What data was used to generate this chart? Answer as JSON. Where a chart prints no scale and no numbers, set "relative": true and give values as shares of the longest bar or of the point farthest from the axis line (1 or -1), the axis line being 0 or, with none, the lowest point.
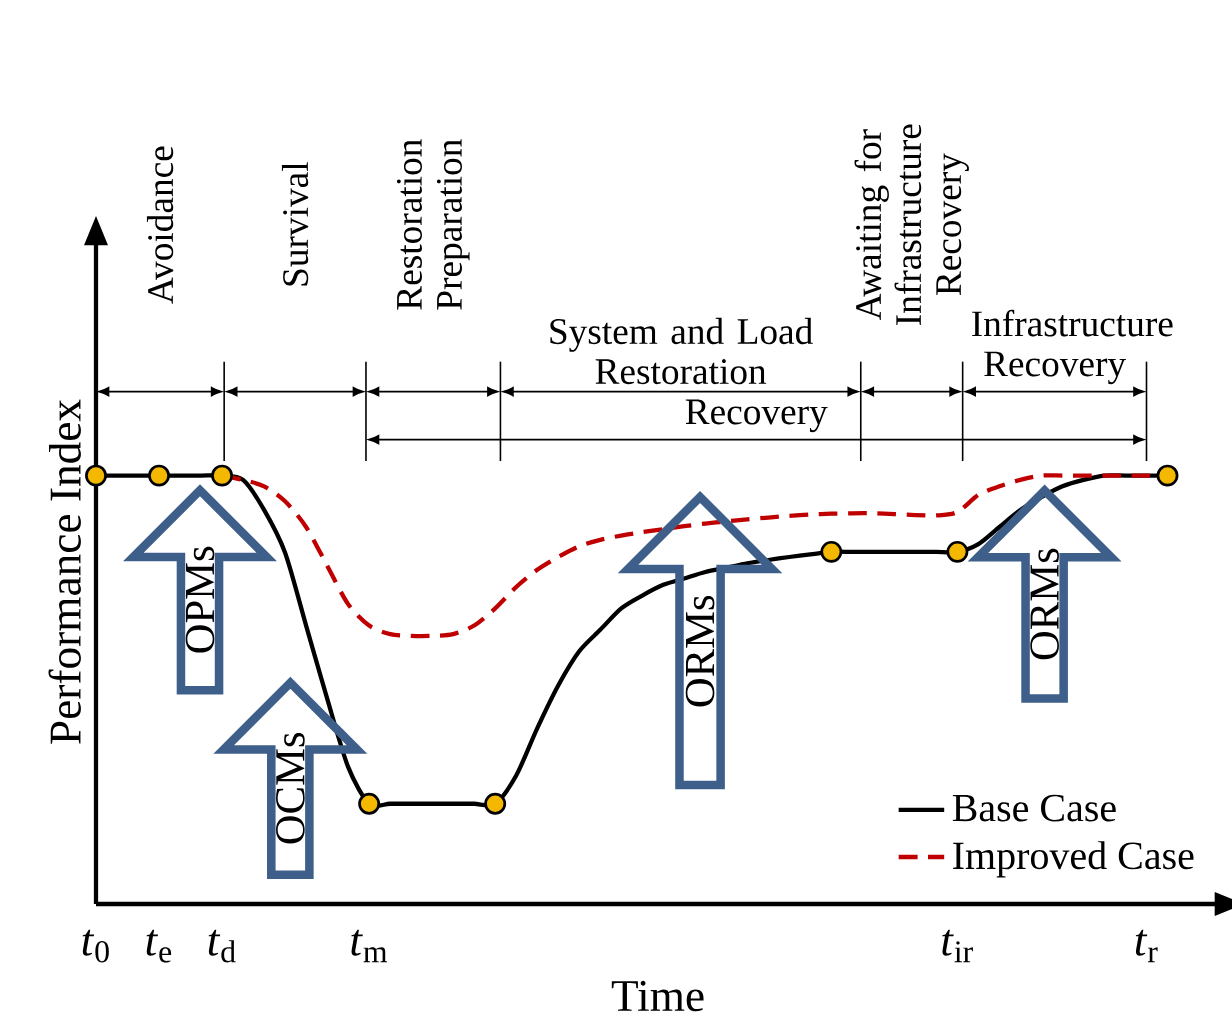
{
  "chart_data": {
    "type": "line",
    "relative": true,
    "xlabel": "Time",
    "ylabel": "Performance Index",
    "categories": [
      "*t*$_{0}$",
      null,
      null,
      "*t*$_{e}$",
      null,
      null,
      "*t*$_{d}$",
      null,
      null,
      null,
      null,
      null,
      null,
      "*t*$_{m}$",
      null,
      null,
      null,
      null,
      null,
      null,
      null,
      null,
      null,
      null,
      null,
      null,
      null,
      null,
      null,
      null,
      null,
      null,
      null,
      null,
      null,
      null,
      null,
      null,
      null,
      null,
      null,
      "*t*$_{ir}$",
      null,
      null,
      null,
      null,
      null,
      null,
      null,
      null,
      "*t*$_{r}$",
      null,
      null,
      null
    ],
    "legend": "bottom right",
    "series": [
      {
        "name": "Base Case",
        "color": "#000000",
        "line_style": "solid",
        "values": [
          1,
          1,
          1,
          1,
          1,
          1,
          1,
          0.99,
          0.92,
          0.82,
          0.65,
          0.48,
          0.32,
          0.234,
          0.234,
          0.234,
          0.234,
          0.234,
          0.234,
          0.234,
          0.3,
          0.41,
          0.51,
          0.59,
          0.64,
          0.69,
          0.72,
          0.745,
          0.76,
          0.775,
          0.785,
          0.795,
          0.803,
          0.81,
          0.816,
          0.822,
          0.822,
          0.822,
          0.822,
          0.822,
          0.822,
          0.822,
          0.84,
          0.88,
          0.92,
          0.95,
          0.975,
          0.99,
          1,
          1,
          1,
          1,
          null,
          null
        ]
      },
      {
        "name": "Improved Case",
        "color": "#c00000",
        "line_style": "dashed",
        "values": [
          null,
          null,
          null,
          null,
          null,
          null,
          1,
          0.99,
          0.975,
          0.94,
          0.88,
          0.79,
          0.7,
          0.65,
          0.63,
          0.626,
          0.626,
          0.63,
          0.65,
          0.69,
          0.74,
          0.78,
          0.81,
          0.835,
          0.85,
          0.86,
          0.868,
          0.875,
          0.882,
          0.888,
          0.893,
          0.898,
          0.902,
          0.906,
          0.909,
          0.911,
          0.912,
          0.912,
          0.91,
          0.908,
          0.907,
          0.915,
          0.955,
          0.975,
          0.99,
          1,
          1,
          1,
          1,
          1,
          1,
          1,
          null,
          null
        ]
      },
      {
        "type": "scatter",
        "marker": "circle",
        "color": "#f5b800",
        "values": [
          1,
          null,
          null,
          1,
          null,
          null,
          1,
          null,
          null,
          null,
          null,
          null,
          null,
          0.234,
          null,
          null,
          null,
          null,
          null,
          0.234,
          null,
          null,
          null,
          null,
          null,
          null,
          null,
          null,
          null,
          null,
          null,
          null,
          null,
          null,
          null,
          0.822,
          null,
          null,
          null,
          null,
          null,
          0.822,
          null,
          null,
          null,
          null,
          null,
          null,
          null,
          null,
          null,
          1,
          null,
          null
        ]
      }
    ],
    "annotations": [
      "Avoidance",
      "Survival",
      "Restoration Preparation",
      "System and Load Restoration",
      "Awaiting for Infrastructure Recovery",
      "Infrastructure Recovery",
      "Recovery",
      "OPMs",
      "OCMs",
      "ORMs",
      "ORMs"
    ]
  }
}
